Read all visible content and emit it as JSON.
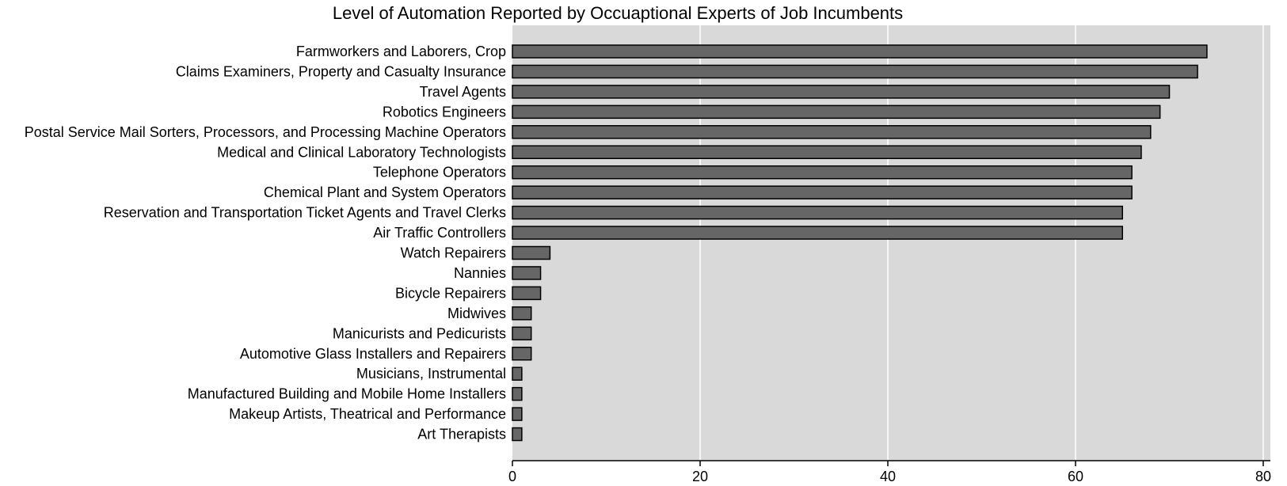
{
  "colors": {
    "plot_background": "#d9d9d9",
    "bar_fill": "#666666",
    "bar_stroke": "#000000",
    "gridline": "#ffffff",
    "axis": "#000000"
  },
  "chart_data": {
    "type": "bar",
    "orientation": "horizontal",
    "title": "Level of Automation Reported by Occuaptional Experts of Job Incumbents",
    "xlabel": "",
    "ylabel": "",
    "xlim": [
      0,
      80
    ],
    "xticks": [
      0,
      20,
      40,
      60,
      80
    ],
    "grid": true,
    "categories": [
      "Farmworkers and Laborers, Crop",
      "Claims Examiners, Property and Casualty Insurance",
      "Travel Agents",
      "Robotics Engineers",
      "Postal Service Mail Sorters, Processors, and Processing Machine Operators",
      "Medical and Clinical Laboratory Technologists",
      "Telephone Operators",
      "Chemical Plant and System Operators",
      "Reservation and Transportation Ticket Agents and Travel Clerks",
      "Air Traffic Controllers",
      "Watch Repairers",
      "Nannies",
      "Bicycle Repairers",
      "Midwives",
      "Manicurists and Pedicurists",
      "Automotive Glass Installers and Repairers",
      "Musicians, Instrumental",
      "Manufactured Building and Mobile Home Installers",
      "Makeup Artists, Theatrical and Performance",
      "Art Therapists"
    ],
    "values": [
      74,
      73,
      70,
      69,
      68,
      67,
      66,
      66,
      65,
      65,
      4,
      3,
      3,
      2,
      2,
      2,
      1,
      1,
      1,
      1
    ]
  }
}
